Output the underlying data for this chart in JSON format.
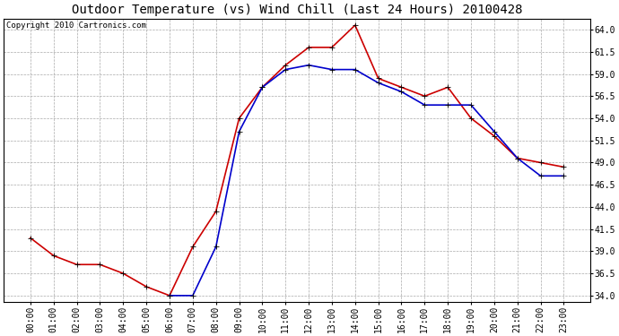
{
  "title": "Outdoor Temperature (vs) Wind Chill (Last 24 Hours) 20100428",
  "copyright": "Copyright 2010 Cartronics.com",
  "x_labels": [
    "00:00",
    "01:00",
    "02:00",
    "03:00",
    "04:00",
    "05:00",
    "06:00",
    "07:00",
    "08:00",
    "09:00",
    "10:00",
    "11:00",
    "12:00",
    "13:00",
    "14:00",
    "15:00",
    "16:00",
    "17:00",
    "18:00",
    "19:00",
    "20:00",
    "21:00",
    "22:00",
    "23:00"
  ],
  "temp": [
    40.5,
    38.5,
    37.5,
    37.5,
    36.5,
    35.0,
    34.0,
    39.5,
    43.5,
    54.0,
    57.5,
    60.0,
    62.0,
    62.0,
    64.5,
    58.5,
    57.5,
    56.5,
    57.5,
    54.0,
    52.0,
    49.5,
    49.0,
    48.5
  ],
  "windchill": [
    null,
    null,
    null,
    null,
    null,
    null,
    34.0,
    34.0,
    39.5,
    52.5,
    57.5,
    59.5,
    60.0,
    59.5,
    59.5,
    58.0,
    57.0,
    55.5,
    55.5,
    55.5,
    52.5,
    49.5,
    47.5,
    47.5
  ],
  "temp_color": "#cc0000",
  "windchill_color": "#0000cc",
  "bg_color": "#ffffff",
  "plot_bg_color": "#ffffff",
  "grid_color": "#aaaaaa",
  "ylim_min": 33.25,
  "ylim_max": 65.25,
  "yticks": [
    34.0,
    36.5,
    39.0,
    41.5,
    44.0,
    46.5,
    49.0,
    51.5,
    54.0,
    56.5,
    59.0,
    61.5,
    64.0
  ],
  "title_fontsize": 10,
  "tick_fontsize": 7,
  "copyright_fontsize": 6.5,
  "marker": "+",
  "marker_size": 4,
  "line_width": 1.2
}
